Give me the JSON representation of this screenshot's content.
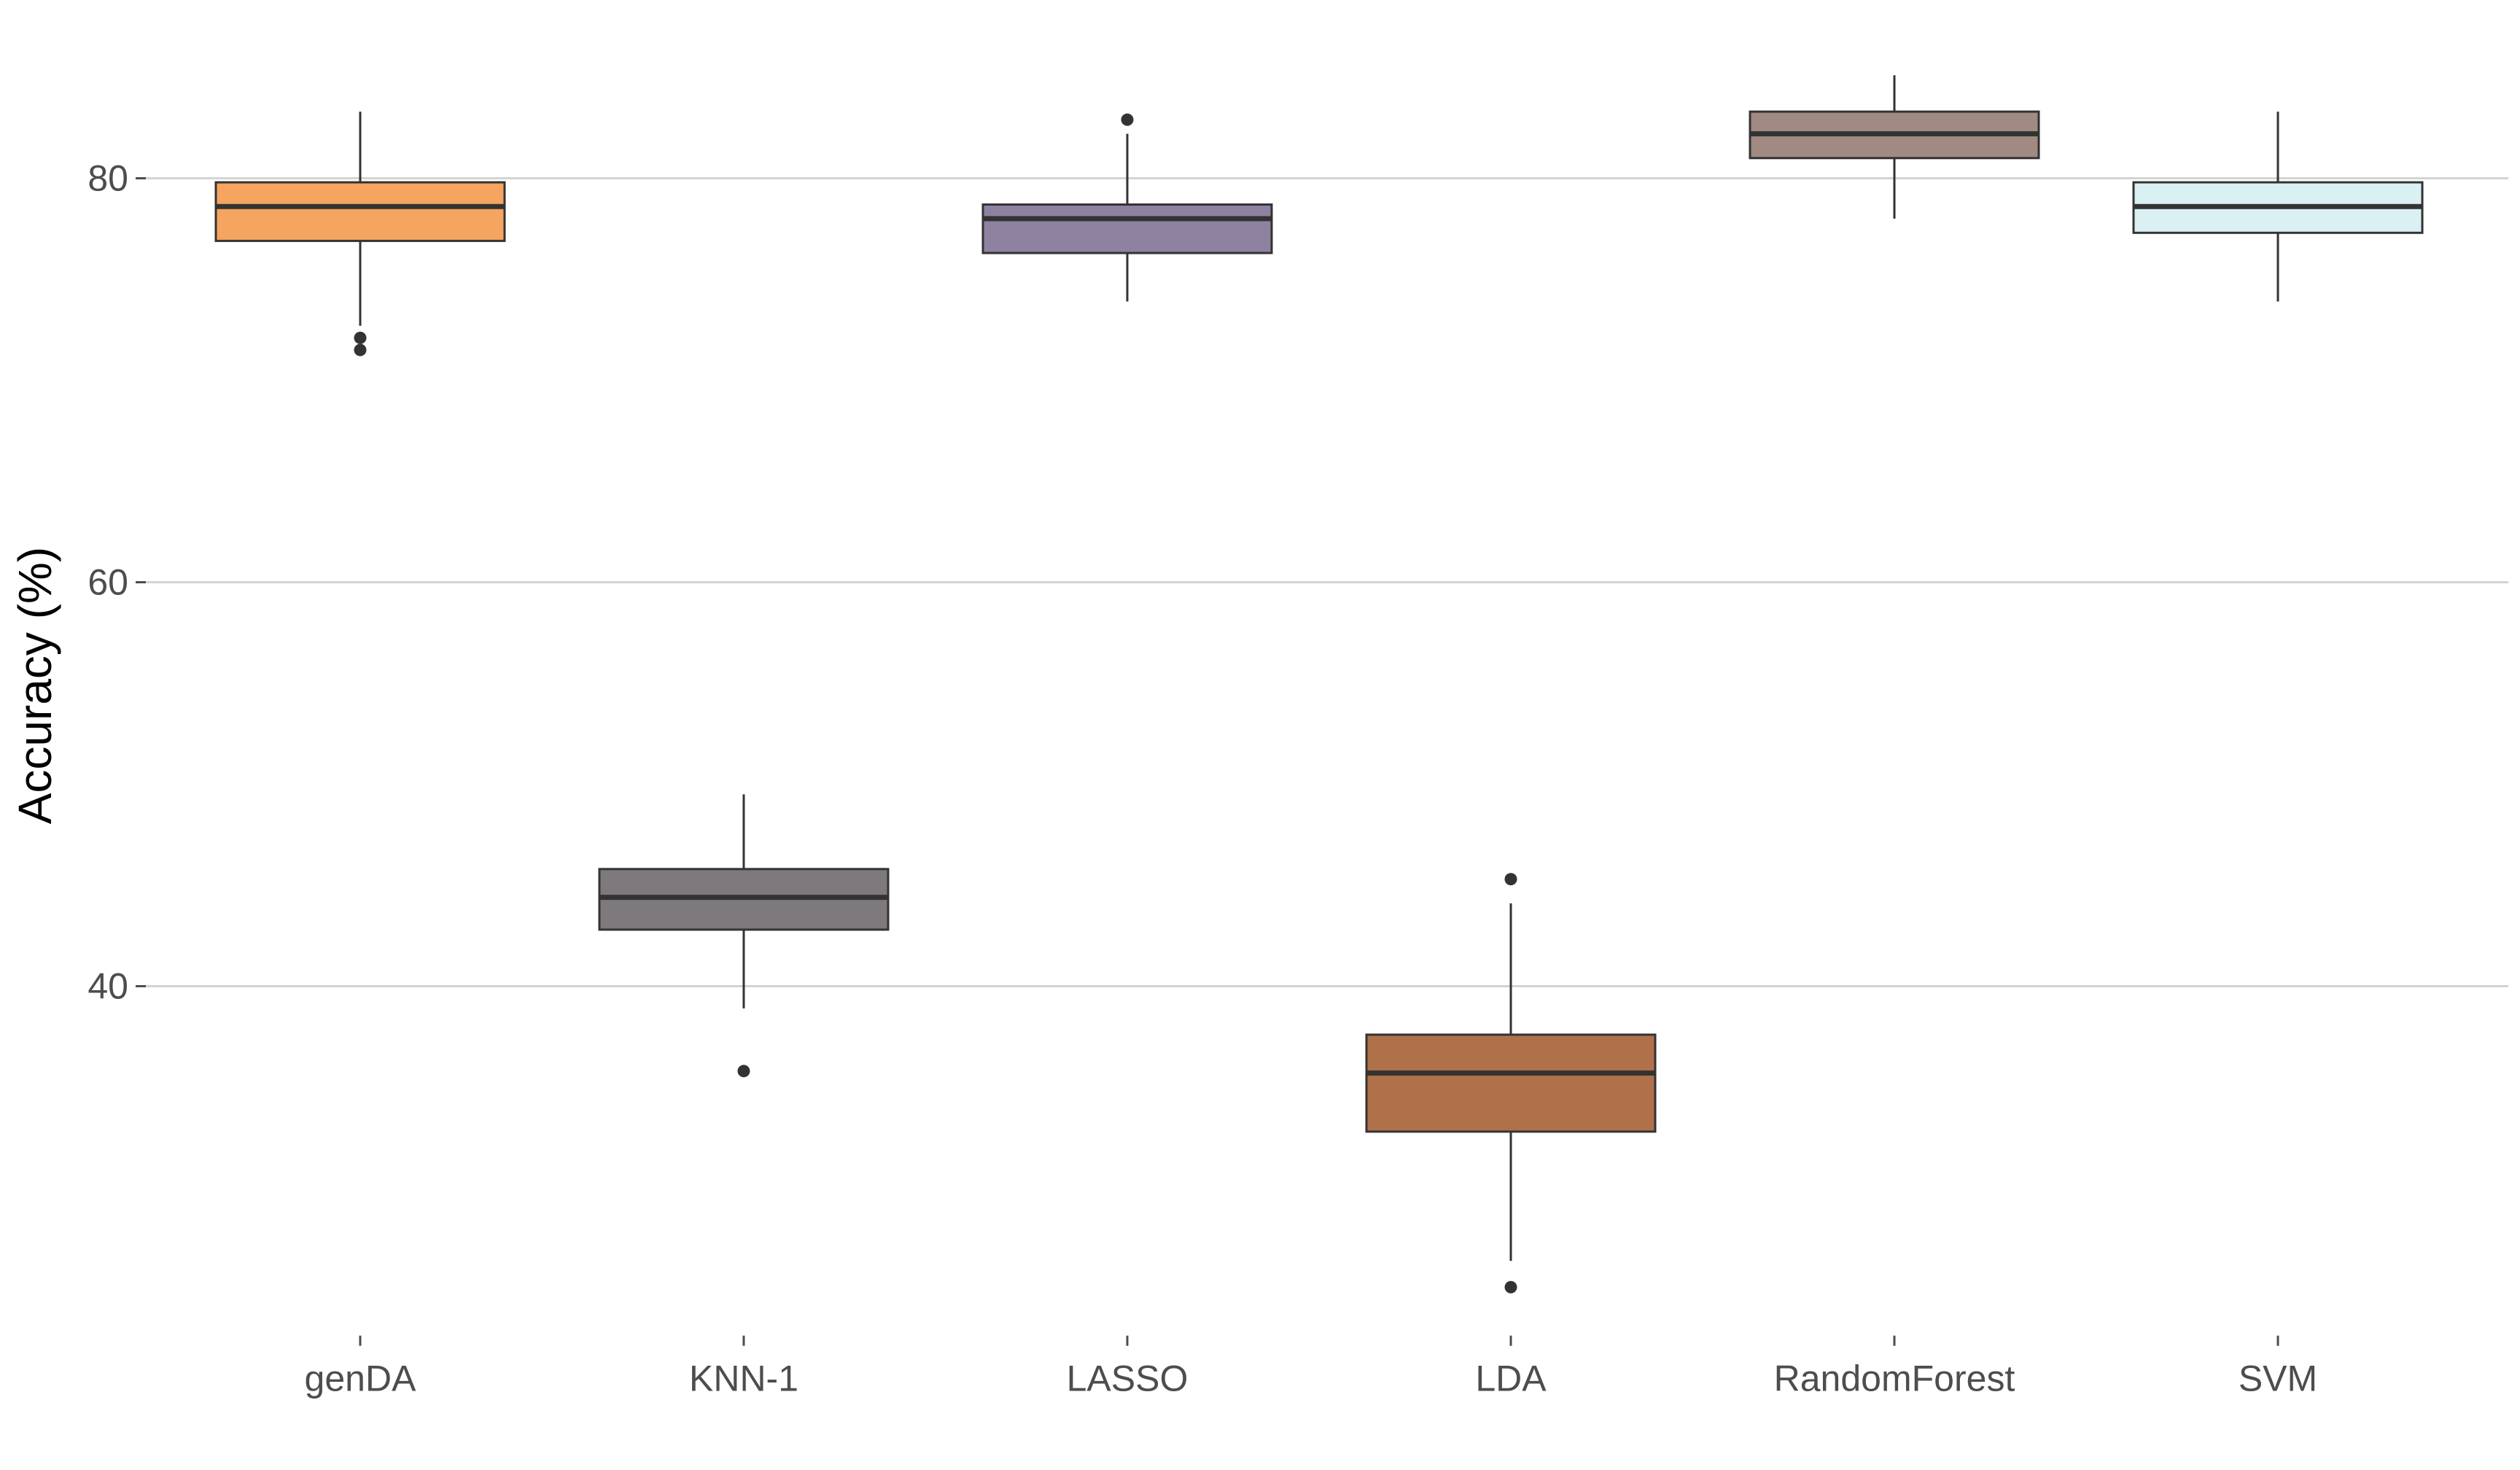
{
  "chart_data": {
    "type": "box",
    "title": "",
    "xlabel": "",
    "ylabel": "Accuracy (%)",
    "ylim": [
      24,
      86
    ],
    "yticks": [
      40,
      60,
      80
    ],
    "grid": "horizontal-major",
    "legend": "none",
    "categories": [
      "genDA",
      "KNN-1",
      "LASSO",
      "LDA",
      "RandomForest",
      "SVM"
    ],
    "boxes": [
      {
        "category": "genDA",
        "whisker_low": 72.7,
        "q1": 76.9,
        "median": 78.6,
        "q3": 79.8,
        "whisker_high": 83.3,
        "outliers": [
          72.1,
          71.5
        ],
        "color": "#F5A55F"
      },
      {
        "category": "KNN-1",
        "whisker_low": 38.9,
        "q1": 42.8,
        "median": 44.4,
        "q3": 45.8,
        "whisker_high": 49.5,
        "outliers": [
          35.8
        ],
        "color": "#7E797D"
      },
      {
        "category": "LASSO",
        "whisker_low": 73.9,
        "q1": 76.3,
        "median": 78.0,
        "q3": 78.7,
        "whisker_high": 82.2,
        "outliers": [
          82.9
        ],
        "color": "#8F82A0"
      },
      {
        "category": "LDA",
        "whisker_low": 26.4,
        "q1": 32.8,
        "median": 35.7,
        "q3": 37.6,
        "whisker_high": 44.1,
        "outliers": [
          45.3,
          25.1
        ],
        "color": "#B0714A"
      },
      {
        "category": "RandomForest",
        "whisker_low": 78.0,
        "q1": 81.0,
        "median": 82.2,
        "q3": 83.3,
        "whisker_high": 85.1,
        "outliers": [],
        "color": "#A08A82"
      },
      {
        "category": "SVM",
        "whisker_low": 73.9,
        "q1": 77.3,
        "median": 78.6,
        "q3": 79.8,
        "whisker_high": 83.3,
        "outliers": [],
        "color": "#DAF0F3"
      }
    ]
  }
}
